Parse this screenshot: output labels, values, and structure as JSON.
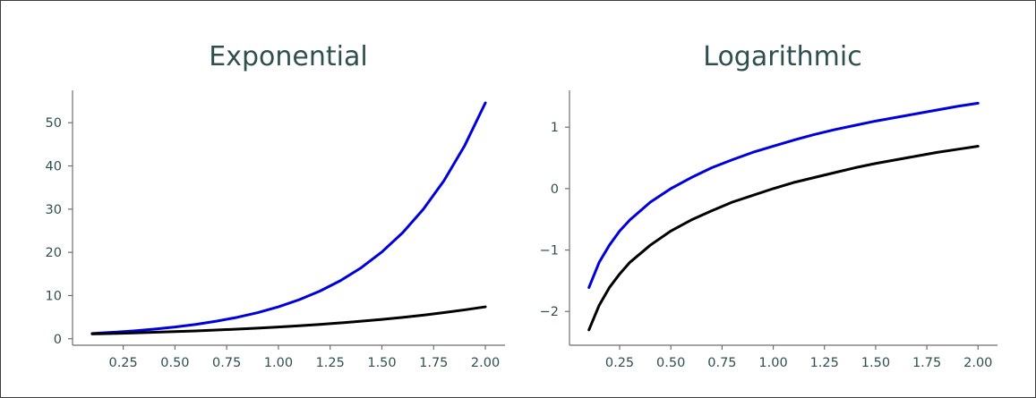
{
  "chart_data": [
    {
      "type": "line",
      "title": "Exponential",
      "xlabel": "",
      "ylabel": "",
      "xlim": [
        0.005,
        2.095
      ],
      "ylim": [
        -1.5,
        57.5
      ],
      "xticks": [
        0.25,
        0.5,
        0.75,
        1.0,
        1.25,
        1.5,
        1.75,
        2.0
      ],
      "xtick_labels": [
        "0.25",
        "0.50",
        "0.75",
        "1.00",
        "1.25",
        "1.50",
        "1.75",
        "2.00"
      ],
      "yticks": [
        0,
        10,
        20,
        30,
        40,
        50
      ],
      "ytick_labels": [
        "0",
        "10",
        "20",
        "30",
        "40",
        "50"
      ],
      "grid": false,
      "series": [
        {
          "color": "#0000dd",
          "x": [
            0.1,
            0.2,
            0.3,
            0.4,
            0.5,
            0.6,
            0.7,
            0.8,
            0.9,
            1.0,
            1.1,
            1.2,
            1.3,
            1.4,
            1.5,
            1.6,
            1.7,
            1.8,
            1.9,
            2.0
          ],
          "y": [
            1.22,
            1.49,
            1.82,
            2.23,
            2.72,
            3.32,
            4.06,
            4.95,
            6.05,
            7.39,
            9.03,
            11.02,
            13.46,
            16.44,
            20.09,
            24.53,
            29.96,
            36.6,
            44.7,
            54.6
          ]
        },
        {
          "color": "#000000",
          "x": [
            0.1,
            0.2,
            0.3,
            0.4,
            0.5,
            0.6,
            0.7,
            0.8,
            0.9,
            1.0,
            1.1,
            1.2,
            1.3,
            1.4,
            1.5,
            1.6,
            1.7,
            1.8,
            1.9,
            2.0
          ],
          "y": [
            1.11,
            1.22,
            1.35,
            1.49,
            1.65,
            1.82,
            2.01,
            2.23,
            2.46,
            2.72,
            3.0,
            3.32,
            3.67,
            4.06,
            4.48,
            4.95,
            5.47,
            6.05,
            6.69,
            7.39
          ]
        }
      ]
    },
    {
      "type": "line",
      "title": "Logarithmic",
      "xlabel": "",
      "ylabel": "",
      "xlim": [
        0.005,
        2.095
      ],
      "ylim": [
        -2.55,
        1.6
      ],
      "xticks": [
        0.25,
        0.5,
        0.75,
        1.0,
        1.25,
        1.5,
        1.75,
        2.0
      ],
      "xtick_labels": [
        "0.25",
        "0.50",
        "0.75",
        "1.00",
        "1.25",
        "1.50",
        "1.75",
        "2.00"
      ],
      "yticks": [
        -2,
        -1,
        0,
        1
      ],
      "ytick_labels": [
        "−2",
        "−1",
        "0",
        "1"
      ],
      "grid": false,
      "series": [
        {
          "color": "#0000dd",
          "x": [
            0.1,
            0.15,
            0.2,
            0.25,
            0.3,
            0.4,
            0.5,
            0.6,
            0.7,
            0.8,
            0.9,
            1.0,
            1.1,
            1.2,
            1.3,
            1.4,
            1.5,
            1.6,
            1.7,
            1.8,
            1.9,
            2.0
          ],
          "y": [
            -1.61,
            -1.2,
            -0.92,
            -0.69,
            -0.51,
            -0.22,
            0.0,
            0.18,
            0.34,
            0.47,
            0.59,
            0.69,
            0.79,
            0.88,
            0.96,
            1.03,
            1.1,
            1.16,
            1.22,
            1.28,
            1.34,
            1.39
          ]
        },
        {
          "color": "#000000",
          "x": [
            0.1,
            0.15,
            0.2,
            0.25,
            0.3,
            0.4,
            0.5,
            0.6,
            0.7,
            0.8,
            0.9,
            1.0,
            1.1,
            1.2,
            1.3,
            1.4,
            1.5,
            1.6,
            1.7,
            1.8,
            1.9,
            2.0
          ],
          "y": [
            -2.3,
            -1.9,
            -1.61,
            -1.39,
            -1.2,
            -0.92,
            -0.69,
            -0.51,
            -0.36,
            -0.22,
            -0.11,
            0.0,
            0.1,
            0.18,
            0.26,
            0.34,
            0.41,
            0.47,
            0.53,
            0.59,
            0.64,
            0.69
          ]
        }
      ]
    }
  ]
}
